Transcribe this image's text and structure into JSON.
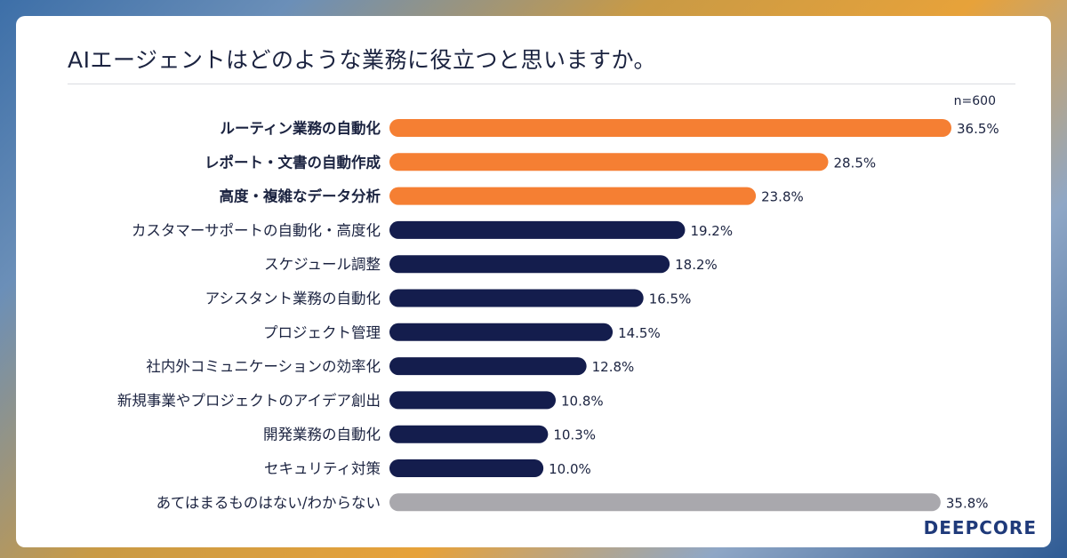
{
  "title": "AIエージェントはどのような業務に役立つと思いますか。",
  "sample_note": "n=600",
  "brand": "DEEPCORE",
  "colors": {
    "highlight": "#f57f33",
    "primary": "#141d4d",
    "other": "#a9a8ad"
  },
  "chart_data": {
    "type": "bar",
    "orientation": "horizontal",
    "title": "AIエージェントはどのような業務に役立つと思いますか。",
    "xlabel": "",
    "ylabel": "",
    "xlim": [
      0,
      36.5
    ],
    "unit": "%",
    "categories": [
      "ルーティン業務の自動化",
      "レポート・文書の自動作成",
      "高度・複雑なデータ分析",
      "カスタマーサポートの自動化・高度化",
      "スケジュール調整",
      "アシスタント業務の自動化",
      "プロジェクト管理",
      "社内外コミュニケーションの効率化",
      "新規事業やプロジェクトのアイデア創出",
      "開発業務の自動化",
      "セキュリティ対策",
      "あてはまるものはない/わからない"
    ],
    "values": [
      36.5,
      28.5,
      23.8,
      19.2,
      18.2,
      16.5,
      14.5,
      12.8,
      10.8,
      10.3,
      10.0,
      35.8
    ],
    "value_labels": [
      "36.5%",
      "28.5%",
      "23.8%",
      "19.2%",
      "18.2%",
      "16.5%",
      "14.5%",
      "12.8%",
      "10.8%",
      "10.3%",
      "10.0%",
      "35.8%"
    ],
    "groups": [
      "highlight",
      "highlight",
      "highlight",
      "primary",
      "primary",
      "primary",
      "primary",
      "primary",
      "primary",
      "primary",
      "primary",
      "other"
    ]
  }
}
